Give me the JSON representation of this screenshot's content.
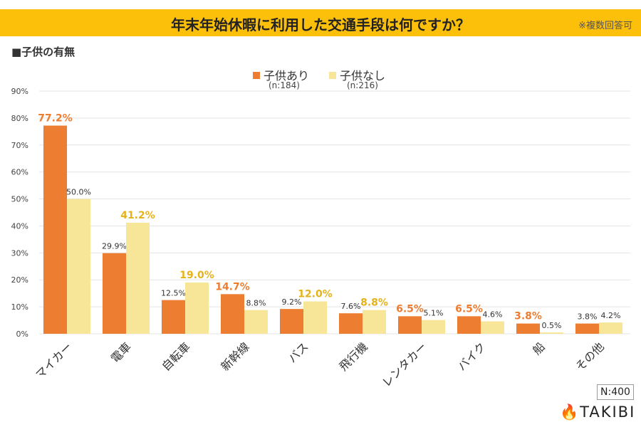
{
  "header": {
    "title": "年末年始休暇に利用した交通手段は何ですか？",
    "note": "※複数回答可"
  },
  "subtitle": "■子供の有無",
  "sample_size": "N:400",
  "logo": "TAKIBI",
  "colors": {
    "with_children": "#ed7d31",
    "without_children": "#f7e697",
    "highlight_without": "#e6b21a",
    "banner": "#fcc00a"
  },
  "chart_data": {
    "type": "bar",
    "title": "年末年始休暇に利用した交通手段は何ですか？",
    "categories": [
      "マイカー",
      "電車",
      "自転車",
      "新幹線",
      "バス",
      "飛行機",
      "レンタカー",
      "バイク",
      "船",
      "その他"
    ],
    "series": [
      {
        "name": "子供あり",
        "n": "(n:184)",
        "values": [
          77.2,
          29.9,
          12.5,
          14.7,
          9.2,
          7.6,
          6.5,
          6.5,
          3.8,
          3.8
        ],
        "labels": [
          "77.2%",
          "29.9%",
          "12.5%",
          "14.7%",
          "9.2%",
          "7.6%",
          "6.5%",
          "6.5%",
          "3.8%",
          "3.8%"
        ],
        "highlight": [
          true,
          false,
          false,
          true,
          false,
          false,
          true,
          true,
          true,
          false
        ]
      },
      {
        "name": "子供なし",
        "n": "(n:216)",
        "values": [
          50.0,
          41.2,
          19.0,
          8.8,
          12.0,
          8.8,
          5.1,
          4.6,
          0.5,
          4.2
        ],
        "labels": [
          "50.0%",
          "41.2%",
          "19.0%",
          "8.8%",
          "12.0%",
          "8.8%",
          "5.1%",
          "4.6%",
          "0.5%",
          "4.2%"
        ],
        "highlight": [
          false,
          true,
          true,
          false,
          true,
          true,
          false,
          false,
          false,
          false
        ]
      }
    ],
    "yticks": [
      "0%",
      "10%",
      "20%",
      "30%",
      "40%",
      "50%",
      "60%",
      "70%",
      "80%",
      "90%"
    ],
    "ylim": [
      0,
      90
    ],
    "grid": true,
    "legend": "top-center"
  }
}
